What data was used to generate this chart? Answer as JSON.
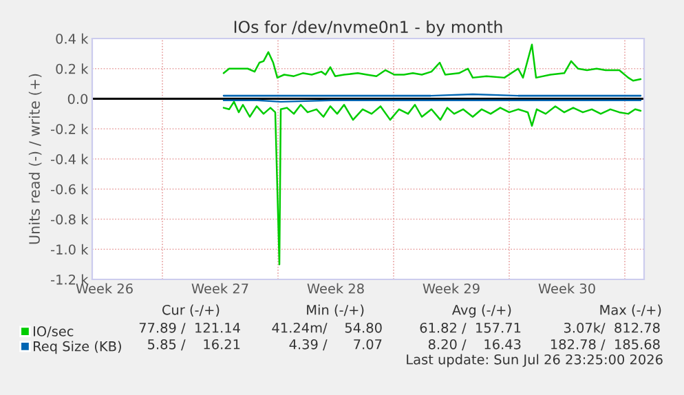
{
  "chart_data": {
    "type": "line",
    "title": "IOs for /dev/nvme0n1 - by month",
    "ylabel": "Units read (-) / write (+)",
    "xlim": [
      "2026-06-24T18:00",
      "2026-07-28T04:00"
    ],
    "ylim": [
      -1200,
      400
    ],
    "xticks": [
      {
        "value": "2026-06-25T12:00",
        "label": "Week 26"
      },
      {
        "value": "2026-06-29",
        "label": null
      },
      {
        "value": "2026-07-02T12:00",
        "label": "Week 27"
      },
      {
        "value": "2026-07-06",
        "label": null
      },
      {
        "value": "2026-07-09T12:00",
        "label": "Week 28"
      },
      {
        "value": "2026-07-13",
        "label": null
      },
      {
        "value": "2026-07-16T12:00",
        "label": "Week 29"
      },
      {
        "value": "2026-07-20",
        "label": null
      },
      {
        "value": "2026-07-23T12:00",
        "label": "Week 30"
      },
      {
        "value": "2026-07-27",
        "label": null
      }
    ],
    "yticks": [
      {
        "value": -1200,
        "label": "-1.2 k"
      },
      {
        "value": -1000,
        "label": "-1.0 k"
      },
      {
        "value": -800,
        "label": "-0.8 k"
      },
      {
        "value": -600,
        "label": "-0.6 k"
      },
      {
        "value": -400,
        "label": "-0.4 k"
      },
      {
        "value": -200,
        "label": "-0.2 k"
      },
      {
        "value": 0,
        "label": "0.0"
      },
      {
        "value": 200,
        "label": "0.2 k"
      },
      {
        "value": 400,
        "label": "0.4 k"
      }
    ],
    "grid": true,
    "legend": "bottom left",
    "ref_lines": [
      {
        "axis": "y",
        "value": 0,
        "label": null,
        "color": "#000000"
      }
    ],
    "series": [
      {
        "name": "IO/sec",
        "color": "#00cc00",
        "x": [
          "2026-07-02T17:00",
          "2026-07-03T01:00",
          "2026-07-03T15:00",
          "2026-07-04T04:00",
          "2026-07-04T14:00",
          "2026-07-04T21:00",
          "2026-07-05T03:00",
          "2026-07-05T10:00",
          "2026-07-05T17:00",
          "2026-07-05T23:00",
          "2026-07-06T09:00",
          "2026-07-06T23:00",
          "2026-07-07T12:00",
          "2026-07-08T01:00",
          "2026-07-08T15:00",
          "2026-07-08T21:00",
          "2026-07-09T04:00",
          "2026-07-09T11:00",
          "2026-07-10T00:00",
          "2026-07-10T20:00",
          "2026-07-11T09:00",
          "2026-07-11T23:00",
          "2026-07-12T12:00",
          "2026-07-13T01:00",
          "2026-07-13T15:00",
          "2026-07-14T04:00",
          "2026-07-14T17:00",
          "2026-07-15T07:00",
          "2026-07-15T19:00",
          "2026-07-16T03:00",
          "2026-07-16T23:00",
          "2026-07-17T12:00",
          "2026-07-17T19:00",
          "2026-07-18T15:00",
          "2026-07-19T17:00",
          "2026-07-20T13:00",
          "2026-07-20T20:00",
          "2026-07-21T09:00",
          "2026-07-21T15:00",
          "2026-07-22T12:00",
          "2026-07-23T08:00",
          "2026-07-23T18:00",
          "2026-07-24T04:00",
          "2026-07-24T17:00",
          "2026-07-25T07:00",
          "2026-07-25T20:00",
          "2026-07-26T16:00",
          "2026-07-27T05:00",
          "2026-07-27T12:00",
          "2026-07-27T23:00"
        ],
        "values": [
          170,
          200,
          200,
          200,
          180,
          240,
          250,
          310,
          240,
          140,
          160,
          150,
          170,
          160,
          180,
          160,
          210,
          150,
          160,
          170,
          160,
          150,
          190,
          160,
          160,
          170,
          160,
          180,
          240,
          160,
          170,
          200,
          140,
          150,
          140,
          200,
          140,
          360,
          140,
          160,
          170,
          250,
          200,
          190,
          200,
          190,
          190,
          140,
          120,
          130
        ]
      },
      {
        "color": "#00cc00",
        "x": [
          "2026-07-02T17:00",
          "2026-07-03T01:00",
          "2026-07-03T08:00",
          "2026-07-03T15:00",
          "2026-07-03T21:00",
          "2026-07-04T07:00",
          "2026-07-04T17:00",
          "2026-07-05T03:00",
          "2026-07-05T13:00",
          "2026-07-05T20:00",
          "2026-07-06T02:00",
          "2026-07-06T04:00",
          "2026-07-06T13:00",
          "2026-07-06T23:00",
          "2026-07-07T09:00",
          "2026-07-07T19:00",
          "2026-07-08T08:00",
          "2026-07-08T18:00",
          "2026-07-09T04:00",
          "2026-07-09T14:00",
          "2026-07-10T00:00",
          "2026-07-10T13:00",
          "2026-07-11T03:00",
          "2026-07-11T16:00",
          "2026-07-12T05:00",
          "2026-07-12T19:00",
          "2026-07-13T08:00",
          "2026-07-13T21:00",
          "2026-07-14T07:00",
          "2026-07-14T17:00",
          "2026-07-15T07:00",
          "2026-07-15T20:00",
          "2026-07-16T06:00",
          "2026-07-16T16:00",
          "2026-07-17T05:00",
          "2026-07-17T19:00",
          "2026-07-18T08:00",
          "2026-07-18T21:00",
          "2026-07-19T11:00",
          "2026-07-20T00:00",
          "2026-07-20T13:00",
          "2026-07-21T03:00",
          "2026-07-21T09:00",
          "2026-07-21T16:00",
          "2026-07-22T05:00",
          "2026-07-22T19:00",
          "2026-07-23T08:00",
          "2026-07-23T21:00",
          "2026-07-24T11:00",
          "2026-07-25T00:00",
          "2026-07-25T13:00",
          "2026-07-26T03:00",
          "2026-07-26T16:00",
          "2026-07-27T05:00",
          "2026-07-27T15:00",
          "2026-07-27T23:00"
        ],
        "values": [
          -60,
          -70,
          -20,
          -90,
          -40,
          -120,
          -50,
          -100,
          -60,
          -90,
          -1100,
          -70,
          -60,
          -100,
          -40,
          -90,
          -70,
          -120,
          -50,
          -100,
          -40,
          -140,
          -70,
          -100,
          -50,
          -140,
          -70,
          -100,
          -40,
          -120,
          -70,
          -140,
          -60,
          -100,
          -70,
          -120,
          -70,
          -100,
          -60,
          -90,
          -70,
          -90,
          -180,
          -70,
          -100,
          -50,
          -90,
          -60,
          -90,
          -70,
          -100,
          -70,
          -90,
          -100,
          -70,
          -80
        ]
      },
      {
        "name": "Req Size (KB)",
        "color": "#0066b3",
        "x": [
          "2026-07-02T17:00",
          "2026-07-04T18:00",
          "2026-07-06T23:00",
          "2026-07-09T06:00",
          "2026-07-11T08:00",
          "2026-07-13T01:00",
          "2026-07-15T06:00",
          "2026-07-17T19:00",
          "2026-07-20T13:00",
          "2026-07-23T08:00",
          "2026-07-25T18:00",
          "2026-07-27T23:00"
        ],
        "values": [
          20,
          20,
          20,
          20,
          20,
          20,
          20,
          30,
          20,
          20,
          20,
          20
        ]
      },
      {
        "color": "#0066b3",
        "x": [
          "2026-07-02T17:00",
          "2026-07-04T18:00",
          "2026-07-06T04:00",
          "2026-07-09T06:00",
          "2026-07-11T08:00",
          "2026-07-13T01:00",
          "2026-07-15T06:00",
          "2026-07-17T19:00",
          "2026-07-20T13:00",
          "2026-07-23T08:00",
          "2026-07-25T18:00",
          "2026-07-27T23:00"
        ],
        "values": [
          -10,
          -10,
          -20,
          -10,
          -10,
          -10,
          -10,
          -10,
          -10,
          -10,
          -10,
          -10
        ]
      }
    ],
    "annotations": [
      "Cur (-/+)",
      "Min (-/+)",
      "Avg (-/+)",
      "Max (-/+)",
      "77.89 /  121.14",
      "41.24m/    54.80",
      "61.82 /  157.71",
      "3.07k/  812.78",
      "5.85 /    16.21",
      "4.39 /      7.07",
      "8.20 /    16.43",
      "182.78 /  185.68",
      "Last update: Sun Jul 26 23:25:00 2026"
    ]
  }
}
